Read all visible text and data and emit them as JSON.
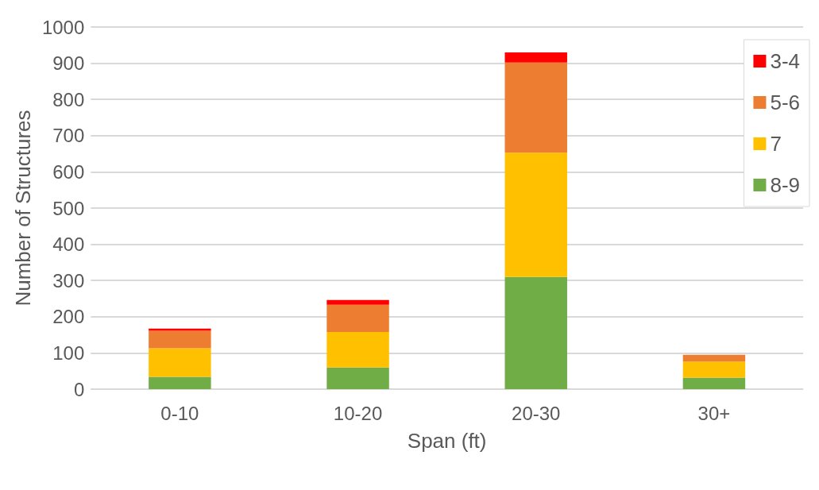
{
  "chart_data": {
    "type": "bar",
    "stacked": true,
    "xlabel": "Span (ft)",
    "ylabel": "Number of Structures",
    "categories": [
      "0-10",
      "10-20",
      "20-30",
      "30+"
    ],
    "series": [
      {
        "name": "8-9",
        "color": "#70ad47",
        "values": [
          34,
          60,
          310,
          32
        ]
      },
      {
        "name": "7",
        "color": "#ffc000",
        "values": [
          79,
          98,
          343,
          44
        ]
      },
      {
        "name": "5-6",
        "color": "#ed7d31",
        "values": [
          48,
          75,
          249,
          19
        ]
      },
      {
        "name": "3-4",
        "color": "#ff0000",
        "values": [
          6,
          13,
          28,
          0
        ]
      }
    ],
    "ylim": [
      0,
      1000
    ],
    "yticks": [
      0,
      100,
      200,
      300,
      400,
      500,
      600,
      700,
      800,
      900,
      1000
    ],
    "grid": "y",
    "legend": "top right"
  }
}
